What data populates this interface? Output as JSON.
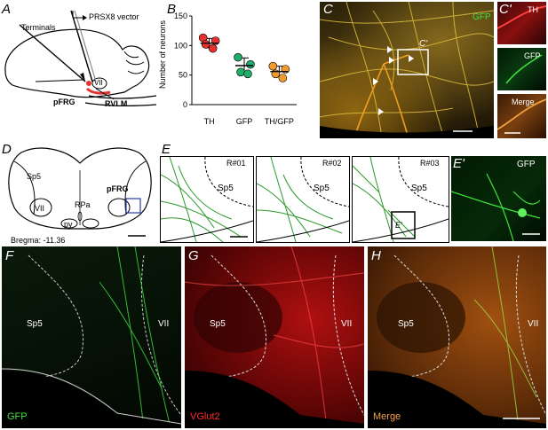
{
  "panelA": {
    "letter": "A",
    "vector_label": "PRSX8 vector",
    "terminals_label": "Terminals",
    "nucleus_label": "VII",
    "pfrg_label": "pFRG",
    "rvlm_label": "RVLM"
  },
  "panelB": {
    "letter": "B",
    "chart_data": {
      "type": "scatter",
      "ylabel": "Number of neurons",
      "ylim": [
        0,
        150
      ],
      "yticks": [
        0,
        50,
        100,
        150
      ],
      "categories": [
        "TH",
        "GFP",
        "TH/GFP"
      ],
      "colors": [
        "#e8302f",
        "#1fae6a",
        "#f39a2d"
      ],
      "points": [
        [
          113,
          108,
          102,
          95
        ],
        [
          80,
          68,
          55,
          52
        ],
        [
          65,
          60,
          52,
          45
        ]
      ],
      "means": [
        104,
        66,
        56
      ],
      "sd": [
        8,
        13,
        9
      ]
    }
  },
  "panelC": {
    "letter": "C",
    "gfp_label": "GFP",
    "inset_label": "C'"
  },
  "panelCprime": {
    "letter": "C'",
    "th_label": "TH",
    "gfp_label": "GFP",
    "merge_label": "Merge"
  },
  "panelD": {
    "letter": "D",
    "sp5_label": "Sp5",
    "pfrg_label": "pFRG",
    "rpa_label": "RPa",
    "vii_label": "VII",
    "py_label": "py",
    "bregma_label": "Bregma: -11.36"
  },
  "panelE": {
    "letter": "E",
    "rats": [
      {
        "label": "R#01",
        "sp5": "Sp5"
      },
      {
        "label": "R#02",
        "sp5": "Sp5"
      },
      {
        "label": "R#03",
        "sp5": "Sp5"
      }
    ],
    "inset_label": "E'"
  },
  "panelEprime": {
    "letter": "E'",
    "gfp_label": "GFP"
  },
  "panelF": {
    "letter": "F",
    "sp5_label": "Sp5",
    "vii_label": "VII",
    "channel_label": "GFP",
    "channel_color": "#3fe23f"
  },
  "panelG": {
    "letter": "G",
    "sp5_label": "Sp5",
    "vii_label": "VII",
    "channel_label": "VGlut2",
    "channel_color": "#ff2a2a"
  },
  "panelH": {
    "letter": "H",
    "sp5_label": "Sp5",
    "vii_label": "VII",
    "channel_label": "Merge",
    "channel_color": "#f4a04a"
  }
}
